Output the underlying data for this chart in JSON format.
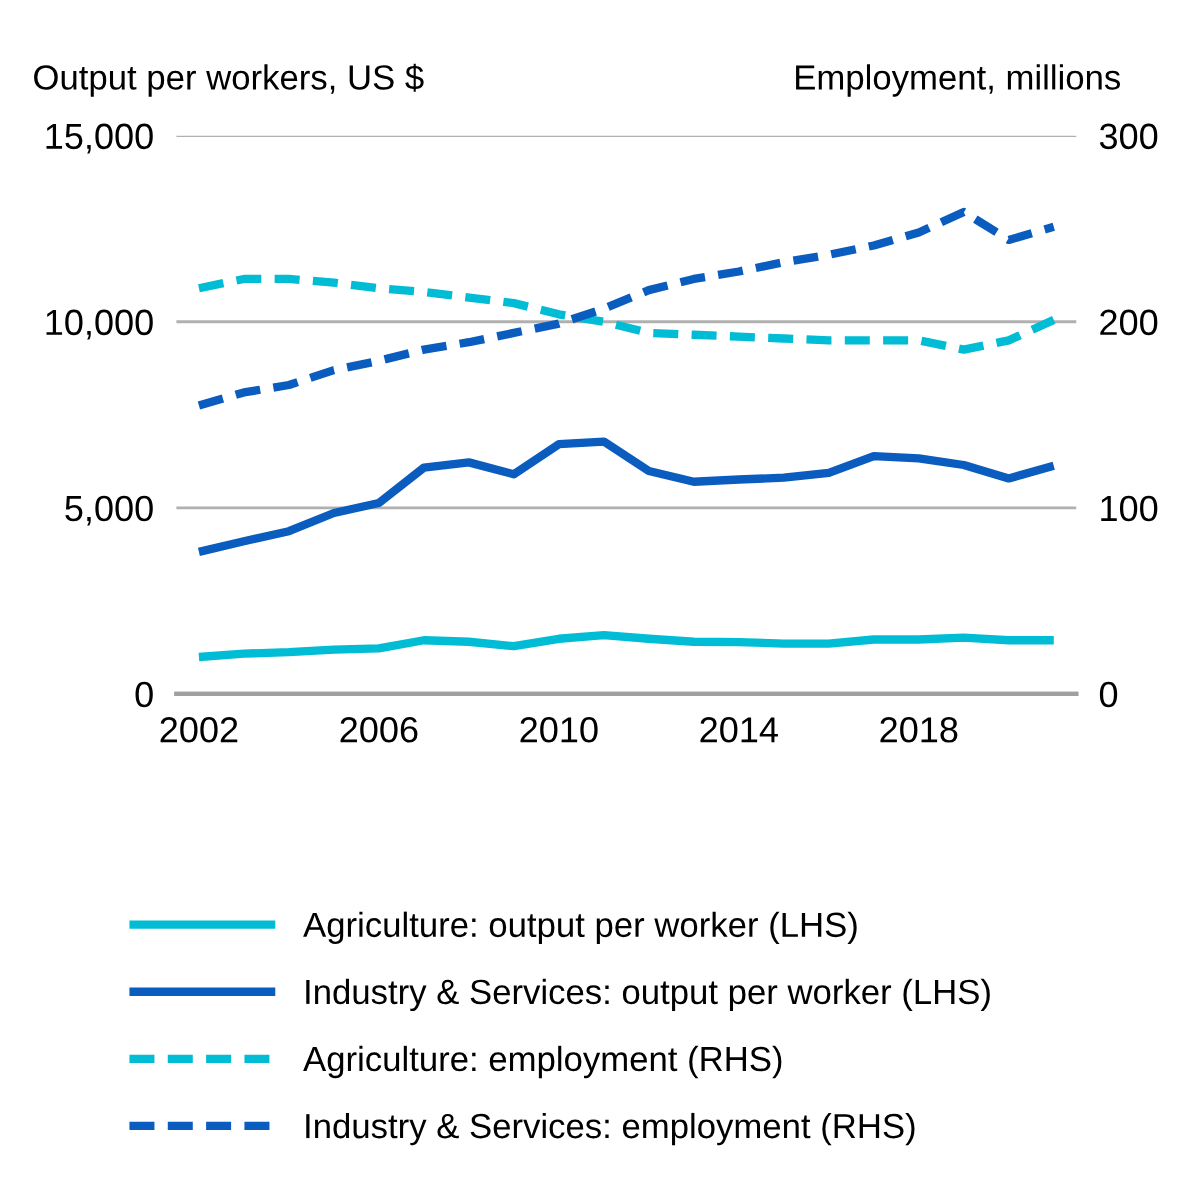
{
  "chart_data": {
    "type": "line",
    "ylabel": "Output per workers, US $",
    "y2label": "Employment, millions",
    "x": [
      2002,
      2003,
      2004,
      2005,
      2006,
      2007,
      2008,
      2009,
      2010,
      2011,
      2012,
      2013,
      2014,
      2015,
      2016,
      2017,
      2018,
      2019,
      2020,
      2021
    ],
    "xlim": [
      2001.5,
      2021.5
    ],
    "xticks": [
      2002,
      2006,
      2010,
      2014,
      2018
    ],
    "ylim": [
      0,
      15000
    ],
    "yticks": [
      {
        "value": 0,
        "label": "0"
      },
      {
        "value": 5000,
        "label": "5,000"
      },
      {
        "value": 10000,
        "label": "10,000"
      },
      {
        "value": 15000,
        "label": "15,000"
      }
    ],
    "y2lim": [
      0,
      300
    ],
    "y2ticks": [
      0,
      100,
      200,
      300
    ],
    "grid": "y",
    "legend": "bottom",
    "series": [
      {
        "name": "Agriculture: output per worker (LHS)",
        "color": "#00bcd4",
        "line_style": "solid",
        "values": [
          990,
          1080,
          1120,
          1190,
          1220,
          1440,
          1400,
          1280,
          1480,
          1580,
          1480,
          1400,
          1390,
          1350,
          1350,
          1460,
          1460,
          1510,
          1440,
          1440
        ]
      },
      {
        "name": "Industry & Services: output per worker (LHS)",
        "color": "#0a5cbf",
        "line_style": "solid",
        "values": [
          3815,
          4100,
          4370,
          4860,
          5130,
          6080,
          6220,
          5900,
          6710,
          6780,
          5990,
          5700,
          5760,
          5810,
          5940,
          6390,
          6330,
          6150,
          5790,
          6130
        ]
      },
      {
        "name": "Agriculture: employment (RHS)",
        "color": "#00bcd4",
        "line_style": "dashed",
        "axis": "y2",
        "values": [
          218,
          223,
          223,
          221,
          218,
          216,
          213,
          210,
          204,
          200,
          194,
          193,
          192,
          191,
          190,
          190,
          190,
          185,
          190,
          201
        ]
      },
      {
        "name": "Industry & Services: employment (RHS)",
        "color": "#0a5cbf",
        "line_style": "dashed",
        "axis": "y2",
        "values": [
          155,
          162,
          166,
          174,
          179,
          185,
          189,
          194,
          199,
          207,
          217,
          223,
          227,
          232,
          236,
          241,
          248,
          259,
          244,
          251
        ]
      }
    ]
  }
}
